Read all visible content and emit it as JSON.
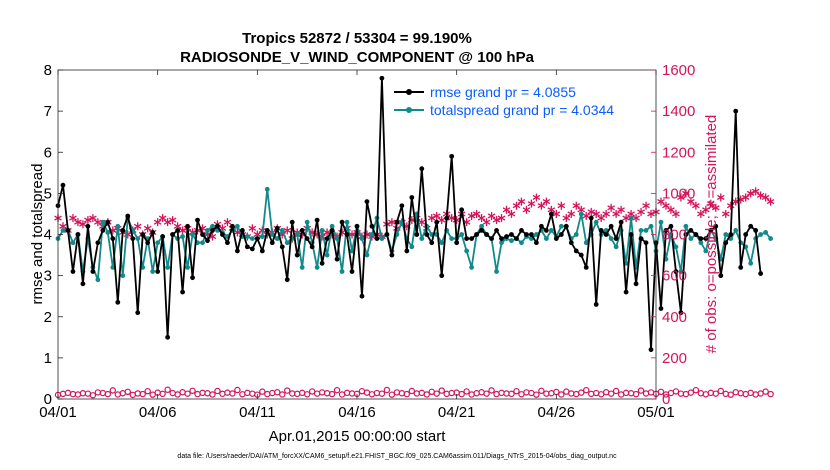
{
  "chart_data": {
    "type": "line",
    "title": "Tropics 52872 / 53304 = 99.190%",
    "subtitle": "RADIOSONDE_V_WIND_COMPONENT @ 100 hPa",
    "xlabel": "Apr.01,2015 00:00:00 start",
    "ylabel_left": "rmse and totalspread",
    "ylabel_right": "# of obs: o=possible; ∗=assimilated",
    "xlim": [
      0,
      30
    ],
    "ylim_left": [
      0,
      8
    ],
    "ylim_right": [
      0,
      1600
    ],
    "x_ticks": [
      {
        "value": 0,
        "label": "04/01"
      },
      {
        "value": 5,
        "label": "04/06"
      },
      {
        "value": 10,
        "label": "04/11"
      },
      {
        "value": 15,
        "label": "04/16"
      },
      {
        "value": 20,
        "label": "04/21"
      },
      {
        "value": 25,
        "label": "04/26"
      },
      {
        "value": 30,
        "label": "05/01"
      }
    ],
    "y_ticks_left": [
      "0",
      "1",
      "2",
      "3",
      "4",
      "5",
      "6",
      "7",
      "8"
    ],
    "y_ticks_right": [
      "0",
      "200",
      "400",
      "600",
      "800",
      "1000",
      "1200",
      "1400",
      "1600"
    ],
    "legend": [
      "rmse grand pr = 4.0855",
      "totalspread grand pr = 4.0344"
    ],
    "colors": {
      "rmse": "#000000",
      "spread": "#138a8a",
      "obs": "#d4145a",
      "legend_text": "#0a5cff"
    },
    "x_step": 0.25,
    "series": [
      {
        "name": "rmse",
        "axis": "left",
        "values": [
          4.7,
          5.2,
          4.1,
          3.1,
          4.0,
          2.8,
          4.2,
          3.1,
          3.8,
          4.1,
          4.3,
          3.9,
          2.35,
          4.1,
          4.45,
          3.9,
          2.1,
          4.0,
          3.8,
          4.05,
          3.1,
          3.95,
          1.5,
          4.0,
          4.1,
          2.6,
          4.2,
          2.95,
          4.35,
          4.0,
          3.85,
          4.1,
          4.2,
          4.0,
          3.8,
          4.2,
          3.6,
          4.1,
          3.7,
          3.65,
          3.9,
          3.6,
          4.1,
          3.8,
          4.15,
          3.7,
          2.9,
          4.3,
          3.5,
          4.1,
          3.9,
          3.7,
          4.35,
          3.3,
          3.9,
          4.1,
          3.4,
          4.3,
          4.0,
          3.1,
          4.2,
          2.5,
          4.8,
          4.2,
          3.9,
          7.8,
          4.0,
          3.5,
          4.3,
          4.7,
          3.6,
          4.9,
          4.0,
          5.6,
          4.0,
          3.8,
          4.3,
          3.0,
          4.4,
          5.9,
          3.8,
          4.6,
          3.9,
          3.9,
          4.0,
          4.1,
          4.0,
          3.9,
          4.1,
          3.9,
          3.95,
          4.0,
          3.9,
          4.1,
          4.0,
          4.0,
          3.8,
          4.2,
          4.1,
          4.5,
          3.9,
          4.0,
          4.2,
          3.8,
          3.6,
          3.5,
          3.2,
          4.4,
          2.3,
          4.1,
          4.0,
          4.2,
          3.9,
          4.3,
          2.6,
          4.0,
          2.8,
          3.9,
          3.8,
          1.2,
          3.8,
          2.2,
          4.1,
          4.2,
          3.1,
          2.1,
          4.0,
          4.1,
          4.0,
          3.9,
          3.9,
          4.1,
          4.2,
          3.0,
          3.8,
          4.0,
          7.0,
          3.2,
          4.0,
          4.2,
          4.1,
          3.05
        ]
      },
      {
        "name": "totalspread",
        "axis": "left",
        "values": [
          3.9,
          4.1,
          4.1,
          3.8,
          4.0,
          3.1,
          3.9,
          3.2,
          2.9,
          4.3,
          4.05,
          3.2,
          4.2,
          3.0,
          4.4,
          4.1,
          3.9,
          3.2,
          3.9,
          3.1,
          3.8,
          3.95,
          3.2,
          4.0,
          3.9,
          3.95,
          3.2,
          4.0,
          3.8,
          3.8,
          4.1,
          4.2,
          4.1,
          4.05,
          3.95,
          4.1,
          4.2,
          3.95,
          3.95,
          3.9,
          3.9,
          3.95,
          5.1,
          4.0,
          3.9,
          4.1,
          3.8,
          3.9,
          4.0,
          3.2,
          4.3,
          3.8,
          3.2,
          4.1,
          3.5,
          4.2,
          3.9,
          3.1,
          4.3,
          3.6,
          4.2,
          3.9,
          3.5,
          4.0,
          4.4,
          3.9,
          4.0,
          3.6,
          4.0,
          4.3,
          3.9,
          3.7,
          4.5,
          3.9,
          4.2,
          4.0,
          4.0,
          3.8,
          4.1,
          3.9,
          3.9,
          4.0,
          3.6,
          3.2,
          4.0,
          4.2,
          4.0,
          3.9,
          3.1,
          3.8,
          3.9,
          3.85,
          3.9,
          3.8,
          3.95,
          3.9,
          4.0,
          4.1,
          3.9,
          4.1,
          3.95,
          4.2,
          4.2,
          3.9,
          4.0,
          4.5,
          3.8,
          4.0,
          4.3,
          4.0,
          4.1,
          3.9,
          3.7,
          4.1,
          3.3,
          4.4,
          3.2,
          4.1,
          4.1,
          4.2,
          3.6,
          4.3,
          3.4,
          4.0,
          3.7,
          3.1,
          4.2,
          3.9,
          4.0,
          3.8,
          3.6,
          4.1,
          3.9,
          3.4,
          4.0,
          3.9,
          4.1,
          3.8,
          3.7,
          3.3,
          3.9,
          4.0,
          4.05,
          3.9
        ]
      },
      {
        "name": "possible",
        "axis": "right",
        "marker": "o",
        "values": [
          20,
          25,
          30,
          24,
          22,
          28,
          26,
          18,
          32,
          29,
          24,
          42,
          22,
          28,
          35,
          20,
          27,
          24,
          38,
          21,
          31,
          25,
          45,
          29,
          22,
          33,
          26,
          40,
          24,
          30,
          28,
          22,
          39,
          25,
          31,
          27,
          44,
          23,
          30,
          26,
          21,
          36,
          24,
          29,
          33,
          22,
          41,
          27,
          25,
          30,
          23,
          37,
          26,
          32,
          28,
          24,
          43,
          22,
          30,
          27,
          25,
          38,
          31,
          23,
          29,
          26,
          44,
          21,
          32,
          28,
          24,
          39,
          27,
          30,
          22,
          35,
          26,
          41,
          25,
          29,
          31,
          24,
          37,
          22,
          28,
          33,
          26,
          42,
          24,
          30,
          27,
          25,
          38,
          23,
          32,
          29,
          21,
          40,
          26,
          28,
          34,
          22,
          36,
          27,
          24,
          31,
          43,
          25,
          29,
          23,
          33,
          26,
          39,
          22,
          30,
          28,
          24,
          41,
          27,
          32,
          25,
          35,
          22,
          29,
          37,
          26,
          24,
          31,
          43,
          28,
          23,
          30,
          26,
          39,
          25,
          21,
          33,
          28,
          24,
          30,
          22,
          27,
          36,
          24
        ]
      },
      {
        "name": "assimilated",
        "axis": "right",
        "marker": "*",
        "values": [
          880,
          840,
          820,
          880,
          860,
          850,
          870,
          880,
          860,
          840,
          860,
          820,
          830,
          810,
          800,
          820,
          840,
          800,
          830,
          810,
          860,
          880,
          860,
          870,
          840,
          820,
          830,
          810,
          820,
          830,
          800,
          790,
          850,
          830,
          860,
          830,
          810,
          800,
          790,
          830,
          800,
          820,
          800,
          810,
          830,
          800,
          820,
          780,
          810,
          800,
          830,
          810,
          800,
          790,
          810,
          800,
          790,
          810,
          830,
          800,
          810,
          790,
          800,
          790,
          800,
          790,
          850,
          860,
          830,
          860,
          840,
          870,
          880,
          860,
          830,
          880,
          890,
          870,
          900,
          880,
          870,
          900,
          860,
          890,
          900,
          880,
          860,
          890,
          870,
          880,
          920,
          900,
          940,
          960,
          920,
          950,
          980,
          940,
          960,
          920,
          900,
          940,
          880,
          900,
          940,
          920,
          890,
          910,
          900,
          880,
          900,
          930,
          900,
          920,
          880,
          900,
          880,
          910,
          940,
          900,
          910,
          960,
          940,
          920,
          900,
          980,
          1000,
          960,
          940,
          900,
          920,
          950,
          930,
          980,
          900,
          940,
          960,
          970,
          980,
          1000,
          1010,
          990,
          980,
          960
        ]
      }
    ],
    "footer": "data file: /Users/raeder/DAI/ATM_forcXX/CAM6_setup/f.e21.FHIST_BGC.f09_025.CAM6assim.011/Diags_NTrS_2015-04/obs_diag_output.nc"
  }
}
